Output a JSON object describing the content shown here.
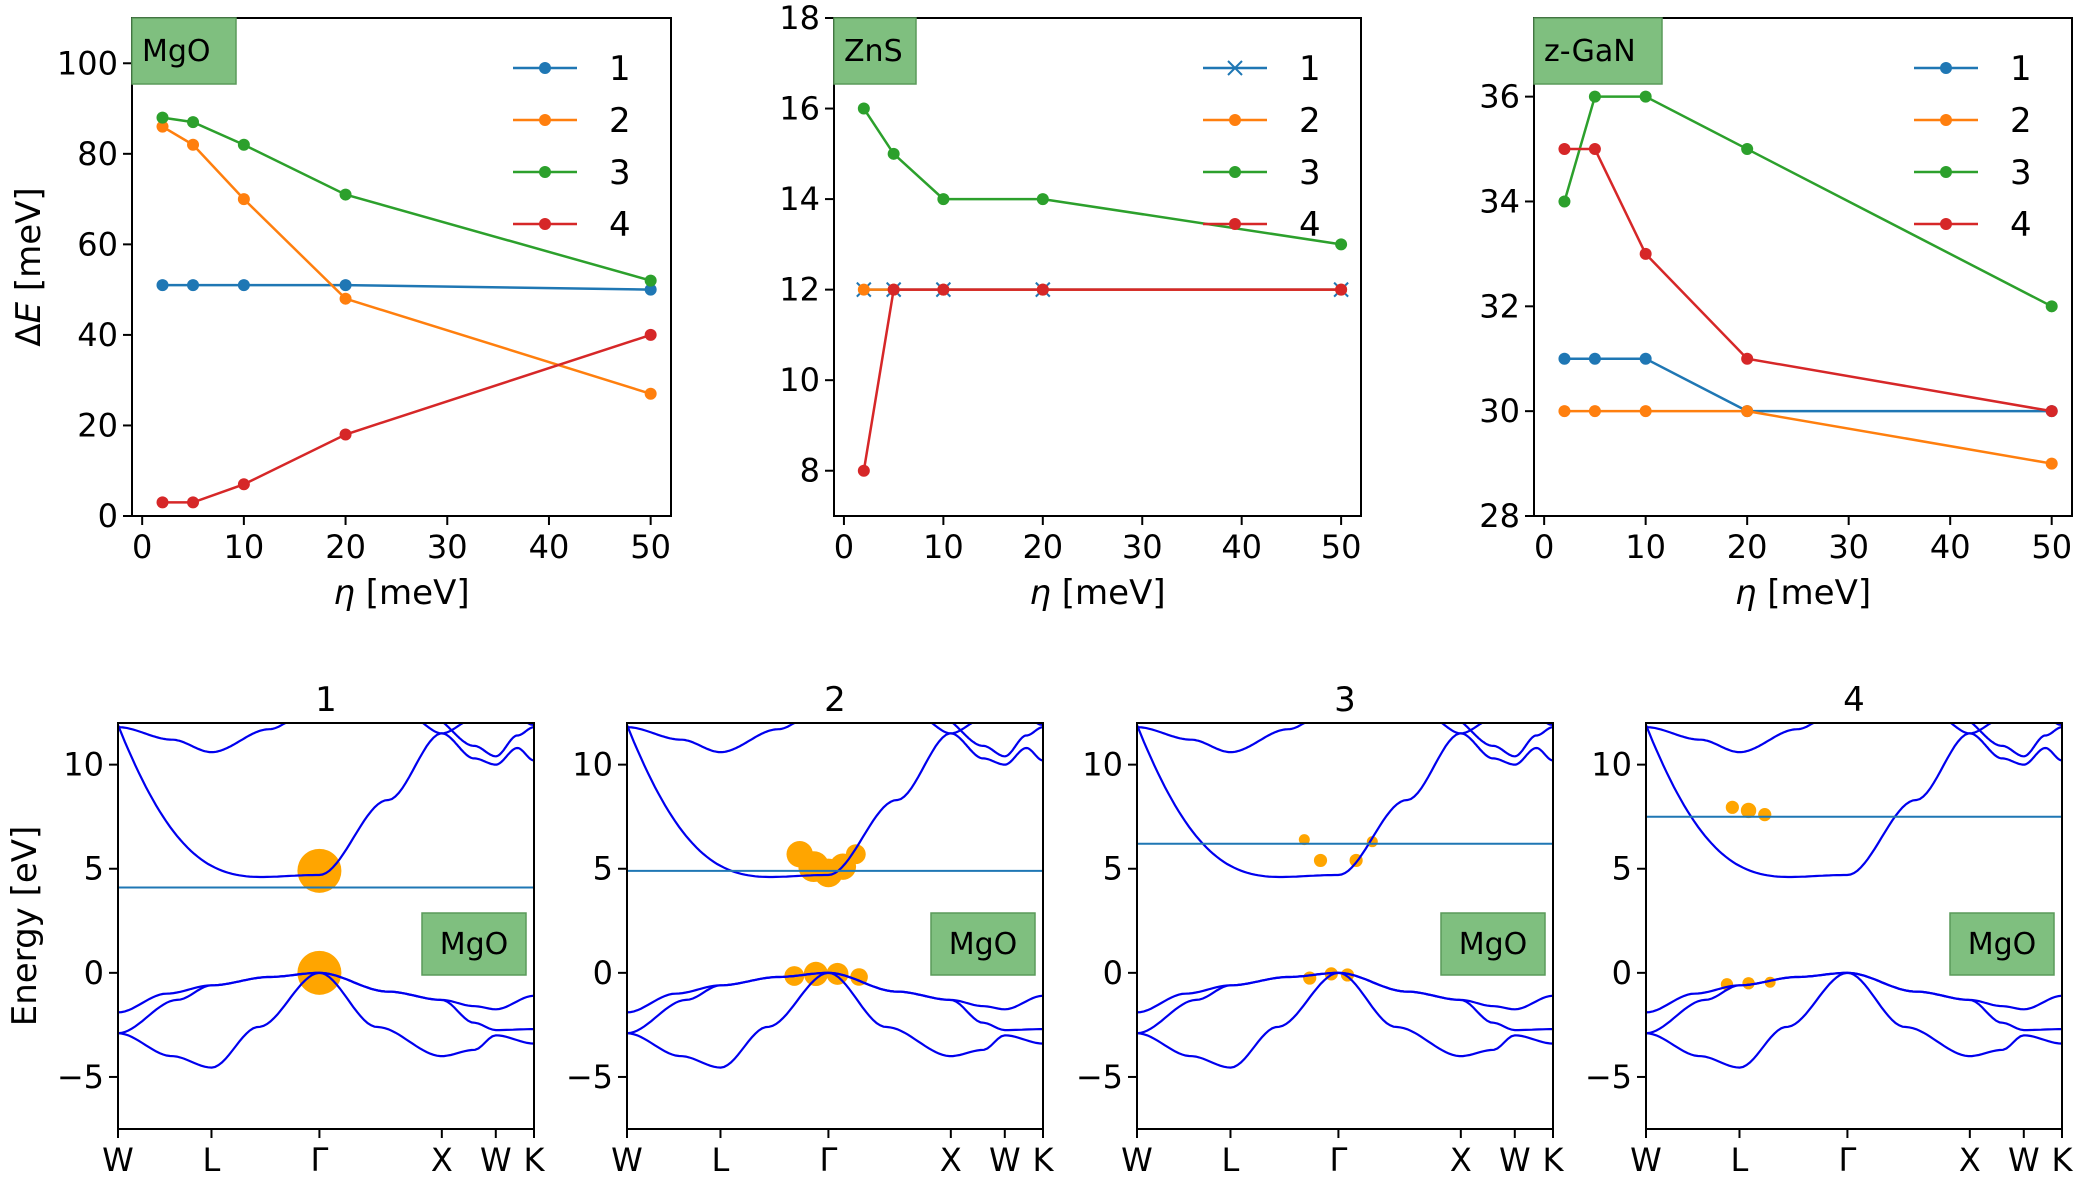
{
  "colors": {
    "series": [
      "#1f77b4",
      "#ff7f0e",
      "#2ca02c",
      "#d62728"
    ],
    "band": "#0000ee",
    "weight": "#ffa500",
    "level": "#1f77b4",
    "label_box": "#7fbf7f"
  },
  "chart_data": [
    {
      "type": "line",
      "material": "MgO",
      "xlabel_symbol": "η",
      "xlabel_unit": " [meV]",
      "ylabel_prefix": "Δ",
      "ylabel_symbol": "E",
      "ylabel_unit": " [meV]",
      "xlim": [
        -1,
        52
      ],
      "ylim": [
        0,
        110
      ],
      "xticks": [
        "0",
        "10",
        "20",
        "30",
        "40",
        "50"
      ],
      "yticks": [
        "0",
        "20",
        "40",
        "60",
        "80",
        "100"
      ],
      "x": [
        2,
        5,
        10,
        20,
        50
      ],
      "series": [
        {
          "name": "1",
          "values": [
            51,
            51,
            51,
            51,
            50
          ],
          "marker": "o"
        },
        {
          "name": "2",
          "values": [
            86,
            82,
            70,
            48,
            27
          ],
          "marker": "o"
        },
        {
          "name": "3",
          "values": [
            88,
            87,
            82,
            71,
            52
          ],
          "marker": "o"
        },
        {
          "name": "4",
          "values": [
            3,
            3,
            7,
            18,
            40
          ],
          "marker": "o"
        }
      ],
      "legend": "top-right"
    },
    {
      "type": "line",
      "material": "ZnS",
      "xlabel_symbol": "η",
      "xlabel_unit": " [meV]",
      "xlim": [
        -1,
        52
      ],
      "ylim": [
        7,
        18
      ],
      "xticks": [
        "0",
        "10",
        "20",
        "30",
        "40",
        "50"
      ],
      "yticks": [
        "8",
        "10",
        "12",
        "14",
        "16",
        "18"
      ],
      "x": [
        2,
        5,
        10,
        20,
        50
      ],
      "series": [
        {
          "name": "1",
          "values": [
            12,
            12,
            12,
            12,
            12
          ],
          "marker": "x"
        },
        {
          "name": "2",
          "values": [
            12,
            12,
            12,
            12,
            12
          ],
          "marker": "o"
        },
        {
          "name": "3",
          "values": [
            16,
            15,
            14,
            14,
            13
          ],
          "marker": "o"
        },
        {
          "name": "4",
          "values": [
            8,
            12,
            12,
            12,
            12
          ],
          "marker": "o"
        }
      ],
      "legend": "top-right"
    },
    {
      "type": "line",
      "material": "z-GaN",
      "xlabel_symbol": "η",
      "xlabel_unit": " [meV]",
      "xlim": [
        -1,
        52
      ],
      "ylim": [
        28,
        37.5
      ],
      "xticks": [
        "0",
        "10",
        "20",
        "30",
        "40",
        "50"
      ],
      "yticks": [
        "28",
        "30",
        "32",
        "34",
        "36"
      ],
      "x": [
        2,
        5,
        10,
        20,
        50
      ],
      "series": [
        {
          "name": "1",
          "values": [
            31,
            31,
            31,
            30,
            30
          ],
          "marker": "o"
        },
        {
          "name": "2",
          "values": [
            30,
            30,
            30,
            30,
            29
          ],
          "marker": "o"
        },
        {
          "name": "3",
          "values": [
            34,
            36,
            36,
            35,
            32
          ],
          "marker": "o"
        },
        {
          "name": "4",
          "values": [
            35,
            35,
            33,
            31,
            30
          ],
          "marker": "o"
        }
      ],
      "legend": "top-right"
    },
    {
      "type": "line",
      "subtype": "band-structure",
      "material": "MgO",
      "ylabel": "Energy [eV]",
      "ylim": [
        -7.5,
        12
      ],
      "yticks": [
        "10",
        "5",
        "0",
        "−5"
      ],
      "kpath": [
        "W",
        "L",
        "Γ",
        "X",
        "W",
        "K"
      ],
      "kpos": [
        0,
        0.866,
        1.866,
        3.0,
        3.5,
        3.854
      ],
      "panels": [
        {
          "title": "1",
          "level": 4.1,
          "weights": [
            {
              "k": 1.866,
              "e": 4.9,
              "r": 1.0
            },
            {
              "k": 1.866,
              "e": 0.0,
              "r": 1.0
            }
          ]
        },
        {
          "title": "2",
          "level": 4.9,
          "weights": [
            {
              "k": 1.6,
              "e": 5.7,
              "r": 0.6
            },
            {
              "k": 1.73,
              "e": 5.1,
              "r": 0.7
            },
            {
              "k": 1.866,
              "e": 4.8,
              "r": 0.65
            },
            {
              "k": 2.0,
              "e": 5.1,
              "r": 0.6
            },
            {
              "k": 2.12,
              "e": 5.7,
              "r": 0.45
            },
            {
              "k": 1.55,
              "e": -0.15,
              "r": 0.45
            },
            {
              "k": 1.75,
              "e": -0.05,
              "r": 0.55
            },
            {
              "k": 1.95,
              "e": -0.05,
              "r": 0.5
            },
            {
              "k": 2.15,
              "e": -0.2,
              "r": 0.4
            }
          ]
        },
        {
          "title": "3",
          "level": 6.2,
          "weights": [
            {
              "k": 1.55,
              "e": 6.4,
              "r": 0.25
            },
            {
              "k": 1.7,
              "e": 5.4,
              "r": 0.3
            },
            {
              "k": 2.03,
              "e": 5.4,
              "r": 0.3
            },
            {
              "k": 2.18,
              "e": 6.3,
              "r": 0.25
            },
            {
              "k": 1.6,
              "e": -0.25,
              "r": 0.3
            },
            {
              "k": 1.8,
              "e": -0.05,
              "r": 0.3
            },
            {
              "k": 1.95,
              "e": -0.1,
              "r": 0.3
            }
          ]
        },
        {
          "title": "4",
          "level": 7.5,
          "weights": [
            {
              "k": 0.8,
              "e": 7.95,
              "r": 0.3
            },
            {
              "k": 0.95,
              "e": 7.8,
              "r": 0.35
            },
            {
              "k": 1.1,
              "e": 7.6,
              "r": 0.3
            },
            {
              "k": 0.75,
              "e": -0.55,
              "r": 0.28
            },
            {
              "k": 0.95,
              "e": -0.5,
              "r": 0.28
            },
            {
              "k": 1.15,
              "e": -0.45,
              "r": 0.25
            }
          ]
        }
      ]
    }
  ]
}
